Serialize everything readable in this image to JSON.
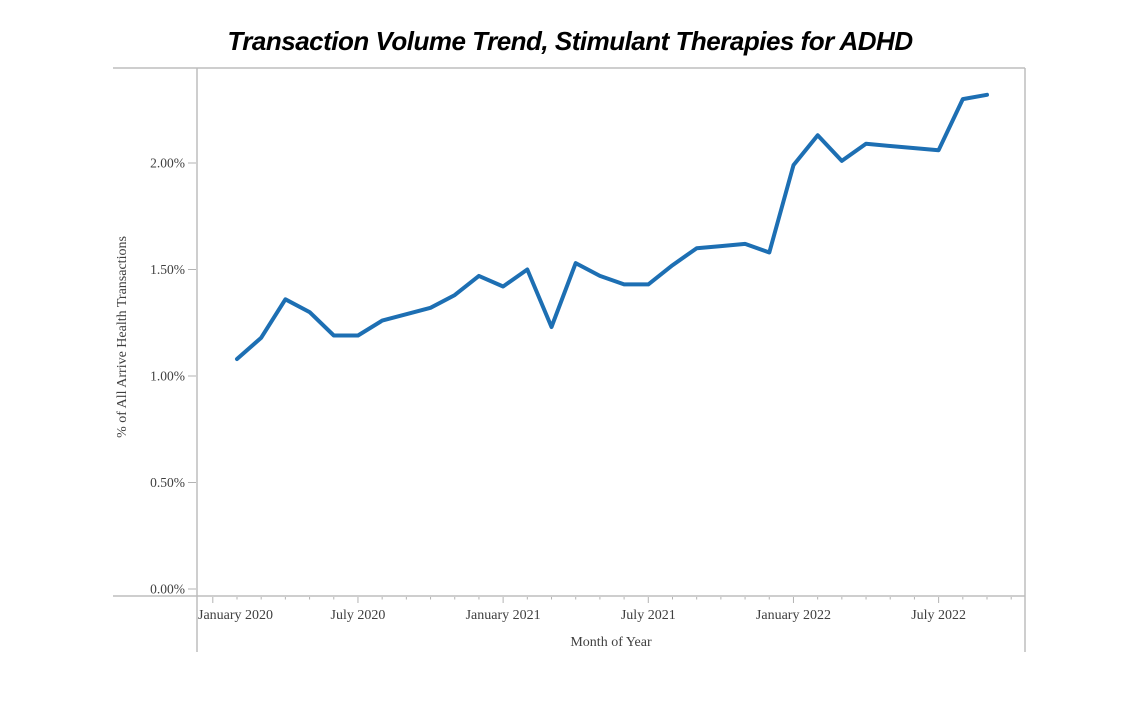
{
  "chart_data": {
    "type": "line",
    "title": "Transaction Volume Trend, Stimulant Therapies for ADHD",
    "xlabel": "Month of Year",
    "ylabel": "% of All Arrive Health Transactions",
    "x": [
      "Feb 2020",
      "Mar 2020",
      "Apr 2020",
      "May 2020",
      "Jun 2020",
      "Jul 2020",
      "Aug 2020",
      "Sep 2020",
      "Oct 2020",
      "Nov 2020",
      "Dec 2020",
      "Jan 2021",
      "Feb 2021",
      "Mar 2021",
      "Apr 2021",
      "May 2021",
      "Jun 2021",
      "Jul 2021",
      "Aug 2021",
      "Sep 2021",
      "Oct 2021",
      "Nov 2021",
      "Dec 2021",
      "Jan 2022",
      "Feb 2022",
      "Mar 2022",
      "Apr 2022",
      "May 2022",
      "Jun 2022",
      "Jul 2022",
      "Aug 2022",
      "Sep 2022"
    ],
    "values": [
      1.08,
      1.18,
      1.36,
      1.3,
      1.19,
      1.19,
      1.26,
      1.29,
      1.32,
      1.38,
      1.47,
      1.42,
      1.5,
      1.23,
      1.53,
      1.47,
      1.43,
      1.43,
      1.52,
      1.6,
      1.61,
      1.62,
      1.58,
      1.99,
      2.13,
      2.01,
      2.09,
      2.08,
      2.07,
      2.06,
      2.3,
      2.32
    ],
    "unit": "%",
    "y_ticks": [
      "0.00%",
      "0.50%",
      "1.00%",
      "1.50%",
      "2.00%"
    ],
    "y_tick_values": [
      0,
      0.5,
      1.0,
      1.5,
      2.0
    ],
    "x_tick_labels": [
      "January 2020",
      "July 2020",
      "January 2021",
      "July 2021",
      "January 2022",
      "July 2022"
    ],
    "ylim": [
      0,
      2.45
    ],
    "grid": false,
    "legend": false,
    "minor_ticks": "monthly",
    "colors": {
      "line": "#1d6fb3",
      "frame": "#bdbdbd",
      "tick": "#b3b3b3",
      "text": "#3f3f3f",
      "title_text": "#000000"
    }
  }
}
